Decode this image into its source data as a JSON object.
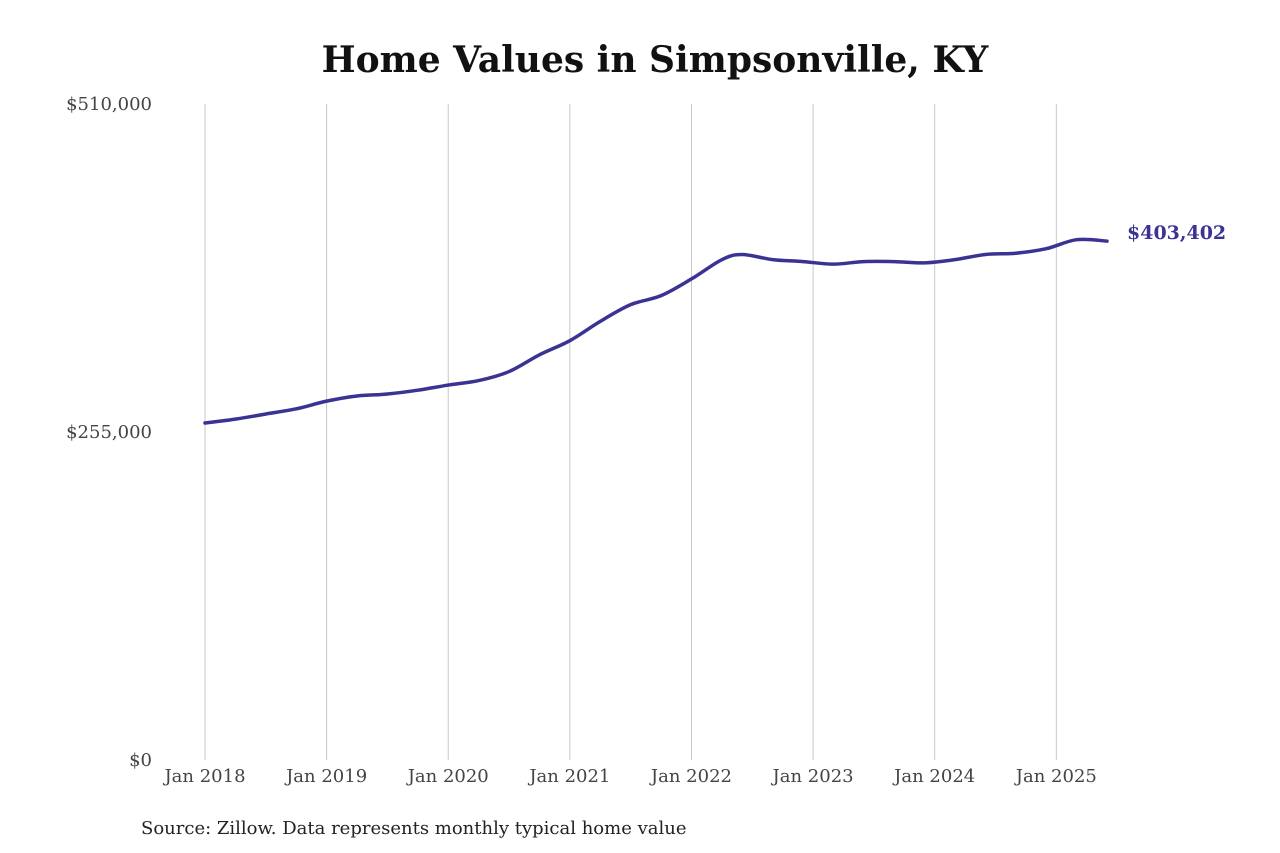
{
  "chart_data": {
    "type": "line",
    "title": "Home Values in Simpsonville, KY",
    "xlabel": "",
    "ylabel": "",
    "ylim": [
      0,
      510000
    ],
    "xlim": [
      "2018-01",
      "2025-06"
    ],
    "y_ticks": [
      {
        "value": 0,
        "label": "$0"
      },
      {
        "value": 255000,
        "label": "$255,000"
      },
      {
        "value": 510000,
        "label": "$510,000"
      }
    ],
    "x_ticks": [
      {
        "value": "2018-01",
        "label": "Jan 2018"
      },
      {
        "value": "2019-01",
        "label": "Jan 2019"
      },
      {
        "value": "2020-01",
        "label": "Jan 2020"
      },
      {
        "value": "2021-01",
        "label": "Jan 2021"
      },
      {
        "value": "2022-01",
        "label": "Jan 2022"
      },
      {
        "value": "2023-01",
        "label": "Jan 2023"
      },
      {
        "value": "2024-01",
        "label": "Jan 2024"
      },
      {
        "value": "2025-01",
        "label": "Jan 2025"
      }
    ],
    "grid": {
      "vertical": true,
      "horizontal": false
    },
    "legend": "none",
    "series": [
      {
        "color": "#3a3393",
        "points": [
          {
            "x": "2018-01",
            "y": 262000
          },
          {
            "x": "2018-04",
            "y": 265000
          },
          {
            "x": "2018-07",
            "y": 269000
          },
          {
            "x": "2018-10",
            "y": 273000
          },
          {
            "x": "2019-01",
            "y": 279000
          },
          {
            "x": "2019-04",
            "y": 283000
          },
          {
            "x": "2019-07",
            "y": 284500
          },
          {
            "x": "2019-10",
            "y": 287500
          },
          {
            "x": "2020-01",
            "y": 291500
          },
          {
            "x": "2020-04",
            "y": 295000
          },
          {
            "x": "2020-07",
            "y": 302000
          },
          {
            "x": "2020-10",
            "y": 315000
          },
          {
            "x": "2021-01",
            "y": 326000
          },
          {
            "x": "2021-04",
            "y": 341000
          },
          {
            "x": "2021-07",
            "y": 354000
          },
          {
            "x": "2021-10",
            "y": 361000
          },
          {
            "x": "2022-01",
            "y": 374000
          },
          {
            "x": "2022-04",
            "y": 389000
          },
          {
            "x": "2022-06",
            "y": 393000
          },
          {
            "x": "2022-09",
            "y": 389000
          },
          {
            "x": "2022-12",
            "y": 387500
          },
          {
            "x": "2023-03",
            "y": 385500
          },
          {
            "x": "2023-06",
            "y": 387500
          },
          {
            "x": "2023-09",
            "y": 387500
          },
          {
            "x": "2023-12",
            "y": 386500
          },
          {
            "x": "2024-03",
            "y": 389000
          },
          {
            "x": "2024-06",
            "y": 393000
          },
          {
            "x": "2024-09",
            "y": 394000
          },
          {
            "x": "2024-12",
            "y": 397500
          },
          {
            "x": "2025-03",
            "y": 404500
          },
          {
            "x": "2025-06",
            "y": 403402
          }
        ]
      }
    ],
    "end_label": "$403,402",
    "source": "Source: Zillow. Data represents monthly typical home value"
  }
}
